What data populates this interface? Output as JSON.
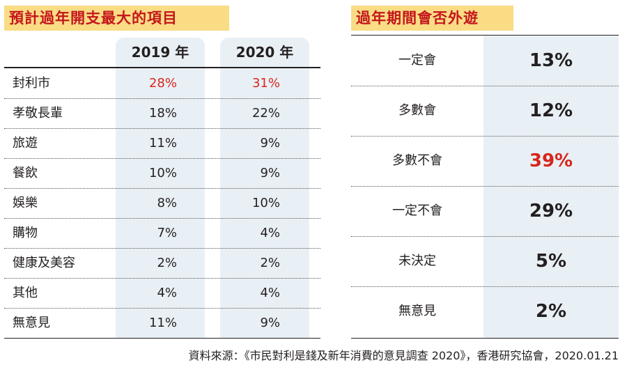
{
  "titles": {
    "left": "預計過年開支最大的項目",
    "right": "過年期間會否外遊"
  },
  "chart_data": [
    {
      "type": "table",
      "title": "預計過年開支最大的項目",
      "columns": [
        "2019 年",
        "2020 年"
      ],
      "rows": [
        {
          "label": "封利市",
          "v2019": "28%",
          "v2020": "31%",
          "highlight": true
        },
        {
          "label": "孝敬長輩",
          "v2019": "18%",
          "v2020": "22%"
        },
        {
          "label": "旅遊",
          "v2019": "11%",
          "v2020": "9%"
        },
        {
          "label": "餐飲",
          "v2019": "10%",
          "v2020": "9%"
        },
        {
          "label": "娛樂",
          "v2019": "8%",
          "v2020": "10%"
        },
        {
          "label": "購物",
          "v2019": "7%",
          "v2020": "4%"
        },
        {
          "label": "健康及美容",
          "v2019": "2%",
          "v2020": "2%"
        },
        {
          "label": "其他",
          "v2019": "4%",
          "v2020": "4%"
        },
        {
          "label": "無意見",
          "v2019": "11%",
          "v2020": "9%"
        }
      ]
    },
    {
      "type": "table",
      "title": "過年期間會否外遊",
      "rows": [
        {
          "label": "一定會",
          "value": "13%"
        },
        {
          "label": "多數會",
          "value": "12%"
        },
        {
          "label": "多數不會",
          "value": "39%",
          "highlight": true
        },
        {
          "label": "一定不會",
          "value": "29%"
        },
        {
          "label": "未決定",
          "value": "5%"
        },
        {
          "label": "無意見",
          "value": "2%"
        }
      ]
    }
  ],
  "colors": {
    "title_bg": "#f9dc84",
    "title_text": "#c4161c",
    "column_bg": "#e9f0f5",
    "highlight": "#d7261e"
  },
  "source": "資料來源：《市民對利是錢及新年消費的意見調查 2020》，香港研究協會，2020.01.21"
}
